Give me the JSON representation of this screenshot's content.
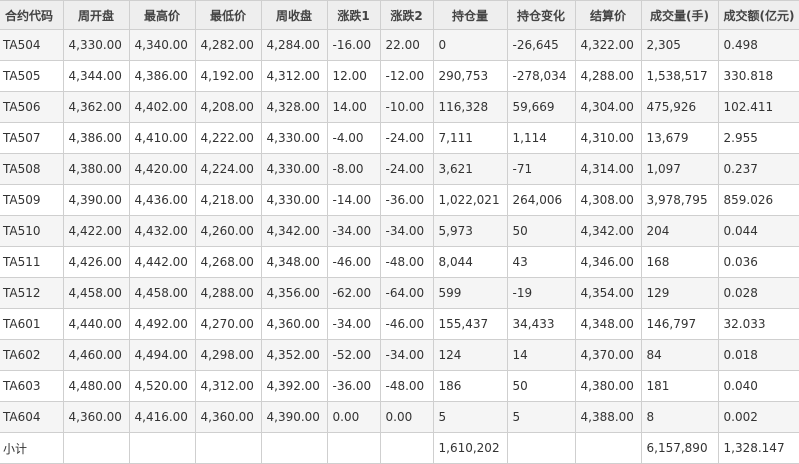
{
  "table": {
    "headers": [
      "合约代码",
      "周开盘",
      "最高价",
      "最低价",
      "周收盘",
      "涨跌1",
      "涨跌2",
      "持仓量",
      "持仓变化",
      "结算价",
      "成交量(手)",
      "成交额(亿元)"
    ],
    "rows": [
      [
        "TA504",
        "4,330.00",
        "4,340.00",
        "4,282.00",
        "4,284.00",
        "-16.00",
        "22.00",
        "0",
        "-26,645",
        "4,322.00",
        "2,305",
        "0.498"
      ],
      [
        "TA505",
        "4,344.00",
        "4,386.00",
        "4,192.00",
        "4,312.00",
        "12.00",
        "-12.00",
        "290,753",
        "-278,034",
        "4,288.00",
        "1,538,517",
        "330.818"
      ],
      [
        "TA506",
        "4,362.00",
        "4,402.00",
        "4,208.00",
        "4,328.00",
        "14.00",
        "-10.00",
        "116,328",
        "59,669",
        "4,304.00",
        "475,926",
        "102.411"
      ],
      [
        "TA507",
        "4,386.00",
        "4,410.00",
        "4,222.00",
        "4,330.00",
        "-4.00",
        "-24.00",
        "7,111",
        "1,114",
        "4,310.00",
        "13,679",
        "2.955"
      ],
      [
        "TA508",
        "4,380.00",
        "4,420.00",
        "4,224.00",
        "4,330.00",
        "-8.00",
        "-24.00",
        "3,621",
        "-71",
        "4,314.00",
        "1,097",
        "0.237"
      ],
      [
        "TA509",
        "4,390.00",
        "4,436.00",
        "4,218.00",
        "4,330.00",
        "-14.00",
        "-36.00",
        "1,022,021",
        "264,006",
        "4,308.00",
        "3,978,795",
        "859.026"
      ],
      [
        "TA510",
        "4,422.00",
        "4,432.00",
        "4,260.00",
        "4,342.00",
        "-34.00",
        "-34.00",
        "5,973",
        "50",
        "4,342.00",
        "204",
        "0.044"
      ],
      [
        "TA511",
        "4,426.00",
        "4,442.00",
        "4,268.00",
        "4,348.00",
        "-46.00",
        "-48.00",
        "8,044",
        "43",
        "4,346.00",
        "168",
        "0.036"
      ],
      [
        "TA512",
        "4,458.00",
        "4,458.00",
        "4,288.00",
        "4,356.00",
        "-62.00",
        "-64.00",
        "599",
        "-19",
        "4,354.00",
        "129",
        "0.028"
      ],
      [
        "TA601",
        "4,440.00",
        "4,492.00",
        "4,270.00",
        "4,360.00",
        "-34.00",
        "-46.00",
        "155,437",
        "34,433",
        "4,348.00",
        "146,797",
        "32.033"
      ],
      [
        "TA602",
        "4,460.00",
        "4,494.00",
        "4,298.00",
        "4,352.00",
        "-52.00",
        "-34.00",
        "124",
        "14",
        "4,370.00",
        "84",
        "0.018"
      ],
      [
        "TA603",
        "4,480.00",
        "4,520.00",
        "4,312.00",
        "4,392.00",
        "-36.00",
        "-48.00",
        "186",
        "50",
        "4,380.00",
        "181",
        "0.040"
      ],
      [
        "TA604",
        "4,360.00",
        "4,416.00",
        "4,360.00",
        "4,390.00",
        "0.00",
        "0.00",
        "5",
        "5",
        "4,388.00",
        "8",
        "0.002"
      ],
      [
        "小计",
        "",
        "",
        "",
        "",
        "",
        "",
        "1,610,202",
        "",
        "",
        "6,157,890",
        "1,328.147"
      ]
    ]
  }
}
